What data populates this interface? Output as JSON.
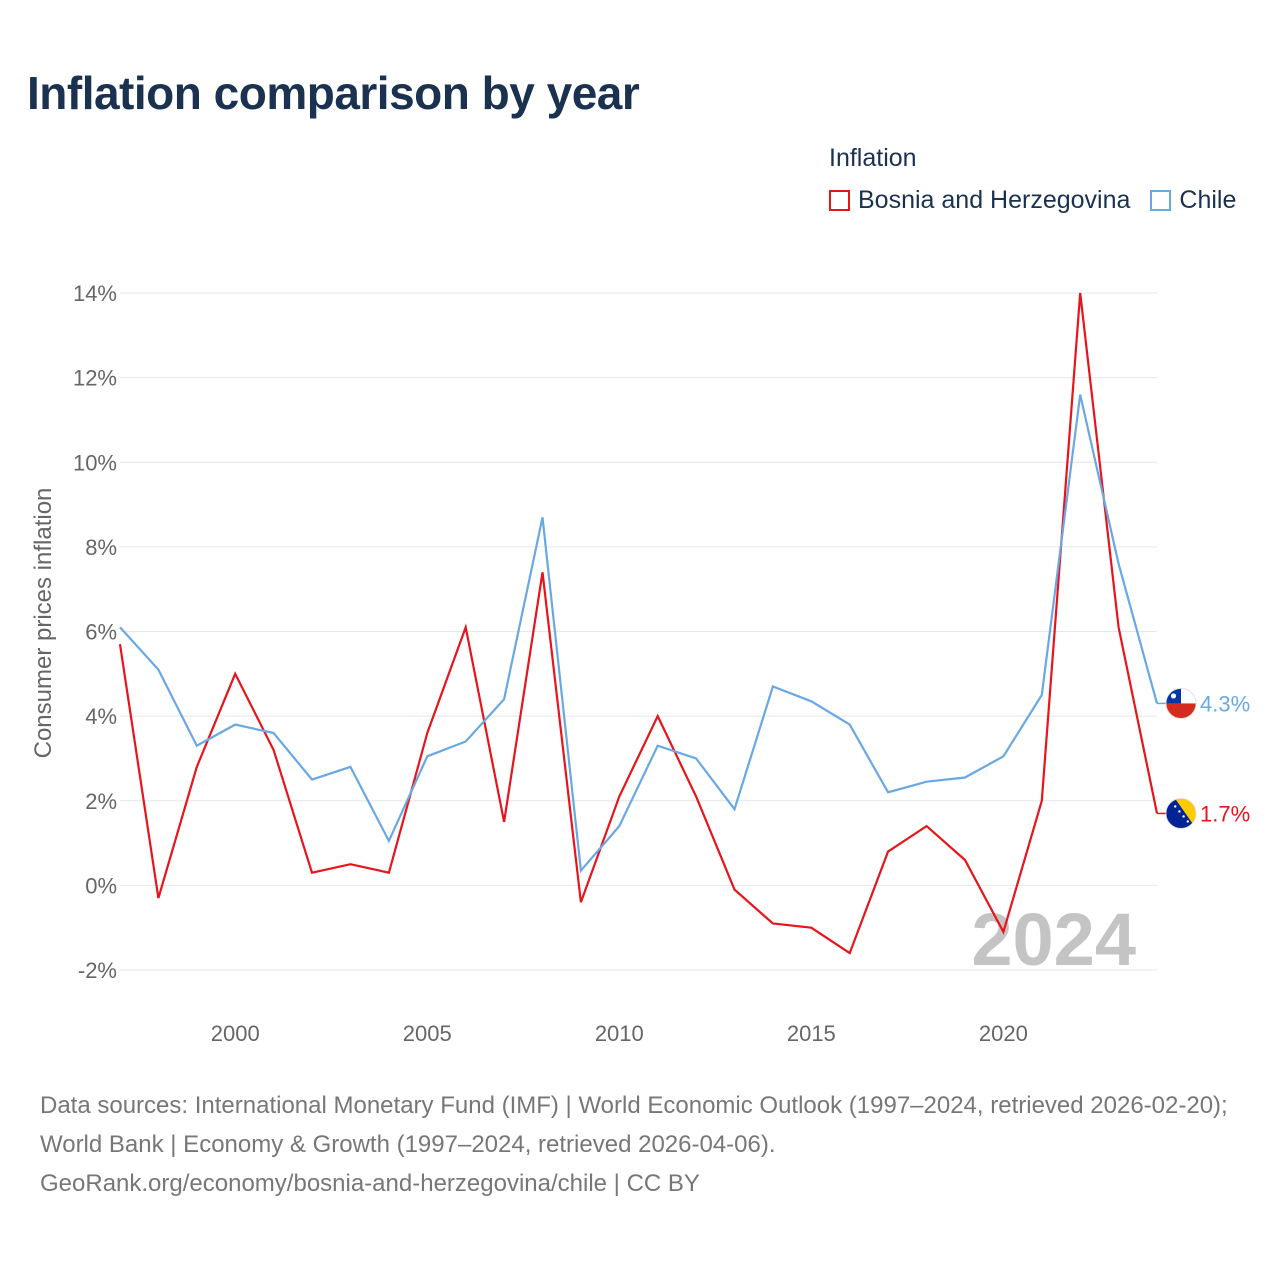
{
  "chart_data": {
    "type": "line",
    "title": "Inflation comparison by year",
    "ylabel": "Consumer prices inflation",
    "xlabel": "",
    "legend_title": "Inflation",
    "legend_placement": "top-right",
    "x": [
      1997,
      1998,
      1999,
      2000,
      2001,
      2002,
      2003,
      2004,
      2005,
      2006,
      2007,
      2008,
      2009,
      2010,
      2011,
      2012,
      2013,
      2014,
      2015,
      2016,
      2017,
      2018,
      2019,
      2020,
      2021,
      2022,
      2023,
      2024
    ],
    "xlim": [
      1997,
      2024
    ],
    "ylim": [
      -2,
      14
    ],
    "x_ticks": [
      2000,
      2005,
      2010,
      2015,
      2020
    ],
    "x_tick_labels": [
      "2000",
      "2005",
      "2010",
      "2015",
      "2020"
    ],
    "y_ticks": [
      -2,
      0,
      2,
      4,
      6,
      8,
      10,
      12,
      14
    ],
    "y_tick_labels": [
      "-2%",
      "0%",
      "2%",
      "4%",
      "6%",
      "8%",
      "10%",
      "12%",
      "14%"
    ],
    "grid": true,
    "year_watermark": "2024",
    "series": [
      {
        "name": "Bosnia and Herzegovina",
        "color": "#e8141c",
        "flag": "bosnia-flag-icon",
        "end_label": "1.7%",
        "values": [
          5.7,
          -0.3,
          2.8,
          5.0,
          3.2,
          0.3,
          0.5,
          0.3,
          3.6,
          6.1,
          1.5,
          7.4,
          -0.4,
          2.1,
          4.0,
          2.1,
          -0.1,
          -0.9,
          -1.0,
          -1.6,
          0.8,
          1.4,
          0.6,
          -1.1,
          2.0,
          14.0,
          6.1,
          1.7
        ]
      },
      {
        "name": "Chile",
        "color": "#6aa8e4",
        "flag": "chile-flag-icon",
        "end_label": "4.3%",
        "values": [
          6.1,
          5.1,
          3.3,
          3.8,
          3.6,
          2.5,
          2.8,
          1.05,
          3.05,
          3.4,
          4.4,
          8.7,
          0.35,
          1.4,
          3.3,
          3.0,
          1.8,
          4.7,
          4.35,
          3.8,
          2.2,
          2.45,
          2.55,
          3.05,
          4.5,
          11.6,
          7.6,
          4.3
        ]
      }
    ]
  },
  "footer": {
    "line1": "Data sources: International Monetary Fund (IMF) | World Economic Outlook (1997–2024, retrieved 2026-02-20); World Bank | Economy & Growth (1997–2024, retrieved 2026-04-06).",
    "line2": "GeoRank.org/economy/bosnia-and-herzegovina/chile | CC BY"
  }
}
